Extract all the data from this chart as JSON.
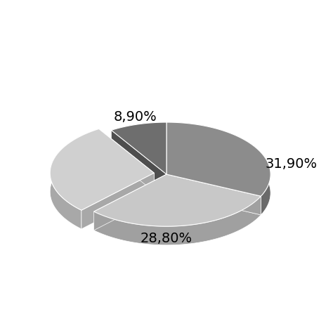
{
  "slices": [
    31.9,
    30.4,
    28.8,
    8.9
  ],
  "labels": [
    "31,90%",
    "",
    "28,80%",
    "8,90%"
  ],
  "colors_top": [
    "#8c8c8c",
    "#c8c8c8",
    "#d0d0d0",
    "#6e6e6e"
  ],
  "colors_side": [
    "#6a6a6a",
    "#a0a0a0",
    "#a8a8a8",
    "#4e4e4e"
  ],
  "startangle": 90,
  "background_color": "#ffffff",
  "label_fontsize": 14,
  "label_color": "#000000",
  "depth": 0.18,
  "explode_idx": 2,
  "explode_amount": 0.12,
  "fig_width": 4.74,
  "fig_height": 4.74,
  "dpi": 100
}
